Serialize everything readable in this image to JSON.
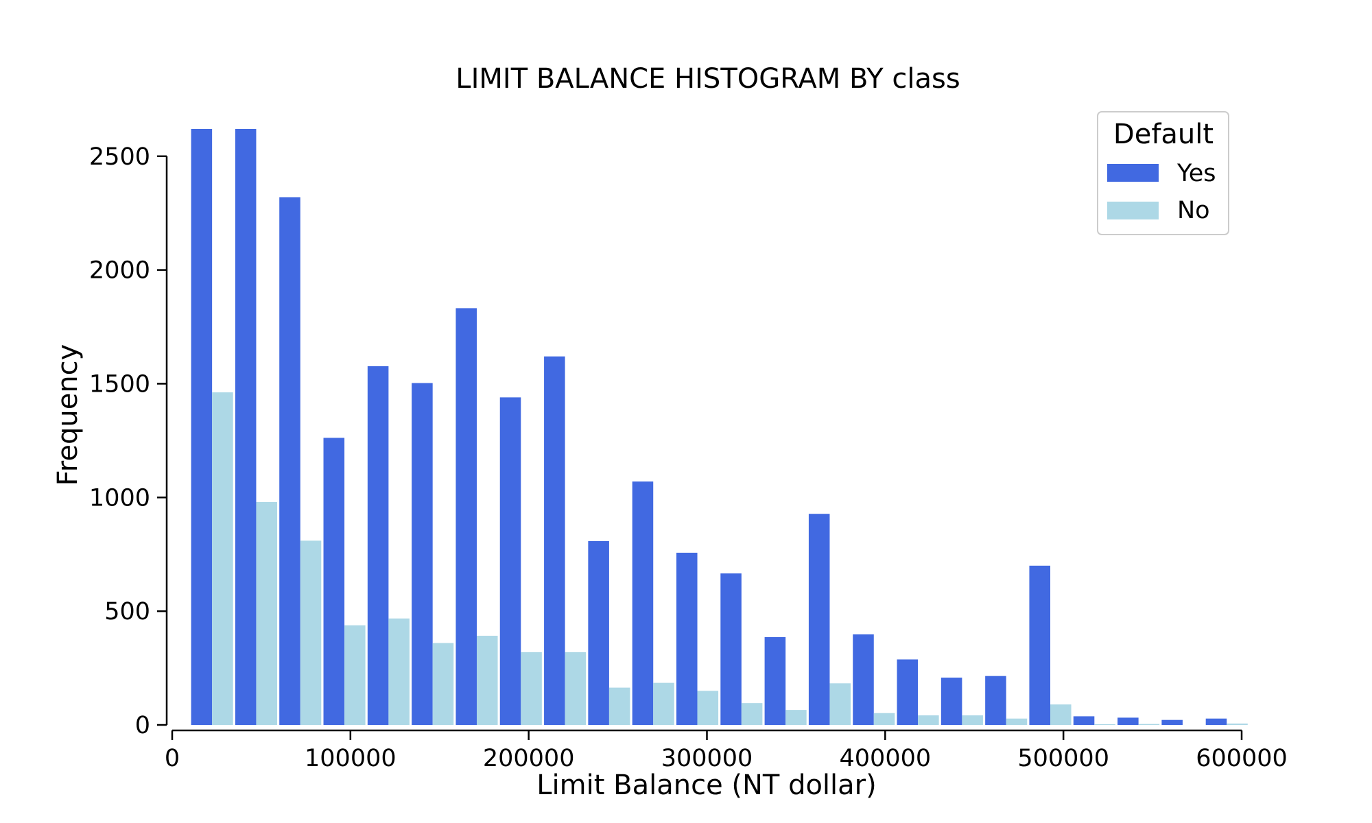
{
  "chart_data": {
    "type": "bar",
    "title": "LIMIT BALANCE HISTOGRAM BY class",
    "xlabel": "Limit Balance (NT dollar)",
    "ylabel": "Frequency",
    "xlim": [
      0,
      600000
    ],
    "ylim": [
      0,
      2620
    ],
    "xticks": [
      "0",
      "100000",
      "200000",
      "300000",
      "400000",
      "500000",
      "600000"
    ],
    "yticks": [
      "0",
      "500",
      "1000",
      "1500",
      "2000",
      "2500"
    ],
    "grid": false,
    "legend": {
      "title": "Default",
      "placement": "top-right"
    },
    "bin_edges": [
      10000,
      34750,
      59500,
      84250,
      109000,
      133750,
      158500,
      183250,
      208000,
      232750,
      257500,
      282250,
      307000,
      331750,
      356500,
      381250,
      406000,
      430750,
      455500,
      480250,
      505000,
      529750,
      554500,
      579250,
      604000
    ],
    "series": [
      {
        "name": "Yes",
        "color": "#4169e1",
        "values": [
          2620,
          2620,
          2320,
          1262,
          1577,
          1503,
          1832,
          1440,
          1620,
          808,
          1070,
          757,
          666,
          386,
          928,
          398,
          288,
          208,
          215,
          700,
          38,
          32,
          22,
          28
        ]
      },
      {
        "name": "No",
        "color": "#add8e6",
        "values": [
          1462,
          980,
          810,
          438,
          468,
          360,
          392,
          320,
          320,
          164,
          185,
          150,
          96,
          66,
          183,
          52,
          42,
          42,
          28,
          90,
          3,
          4,
          0,
          6
        ]
      }
    ]
  }
}
